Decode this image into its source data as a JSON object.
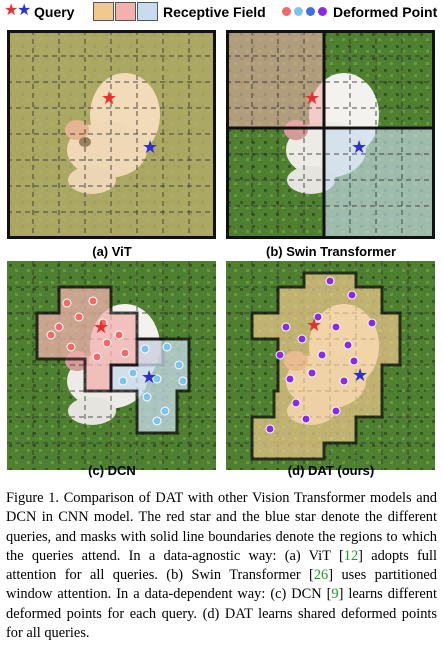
{
  "legend": {
    "query_label": "Query",
    "receptive_label": "Receptive Field",
    "deformed_label": "Deformed Point",
    "colors": {
      "red_star": "#e83030",
      "blue_star": "#2b2fd6",
      "field_orange": "#f1c98d",
      "field_pink": "#f2b1ad",
      "field_blue": "#c9dcee",
      "dot_red": "#f06a6a",
      "dot_light_blue": "#7cc3ee",
      "dot_blue": "#3f6fe0",
      "dot_purple": "#8a2be2"
    }
  },
  "panels": {
    "a": {
      "caption": "(a) ViT"
    },
    "b": {
      "caption": "(b) Swin Transformer"
    },
    "c": {
      "caption": "(c) DCN"
    },
    "d": {
      "caption": "(d) DAT (ours)"
    }
  },
  "caption": {
    "p1": "Figure 1. Comparison of DAT with other Vision Transformer models and DCN in CNN model. The red star and the blue star denote the different queries, and masks with solid line boundaries denote the regions to which the queries attend. In a data-agnostic way: (a) ViT [",
    "ref1": "12",
    "p2": "] adopts full attention for all queries. (b) Swin Transformer [",
    "ref2": "26",
    "p3": "] uses partitioned window attention. In a data-dependent way: (c) DCN [",
    "ref3": "9",
    "p4": "] learns different deformed points for each query. (d) DAT learns shared deformed points for all queries."
  }
}
